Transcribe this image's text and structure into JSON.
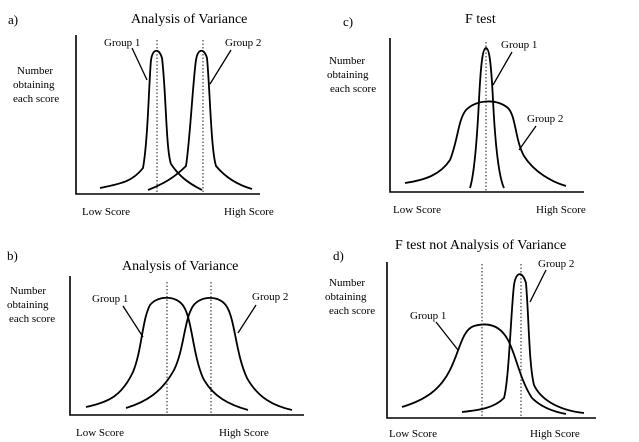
{
  "panels": [
    {
      "letter": "a)",
      "title": "Analysis of Variance",
      "ylabel": [
        "Number",
        "obtaining",
        "each score"
      ],
      "xlabel_low": "Low Score",
      "xlabel_high": "High Score",
      "group_labels": [
        "Group 1",
        "Group 2"
      ]
    },
    {
      "letter": "c)",
      "title": "F  test",
      "ylabel": [
        "Number",
        "obtaining",
        "each score"
      ],
      "xlabel_low": "Low Score",
      "xlabel_high": "High Score",
      "group_labels": [
        "Group 1",
        "Group 2"
      ]
    },
    {
      "letter": "b)",
      "title": "Analysis of Variance",
      "ylabel": [
        "Number",
        "obtaining",
        "each score"
      ],
      "xlabel_low": "Low Score",
      "xlabel_high": "High Score",
      "group_labels": [
        "Group 1",
        "Group 2"
      ]
    },
    {
      "letter": "d)",
      "title": "F  test not Analysis of Variance",
      "ylabel": [
        "Number",
        "obtaining",
        "each score"
      ],
      "xlabel_low": "Low Score",
      "xlabel_high": "High Score",
      "group_labels": [
        "Group 1",
        "Group 2"
      ]
    }
  ]
}
